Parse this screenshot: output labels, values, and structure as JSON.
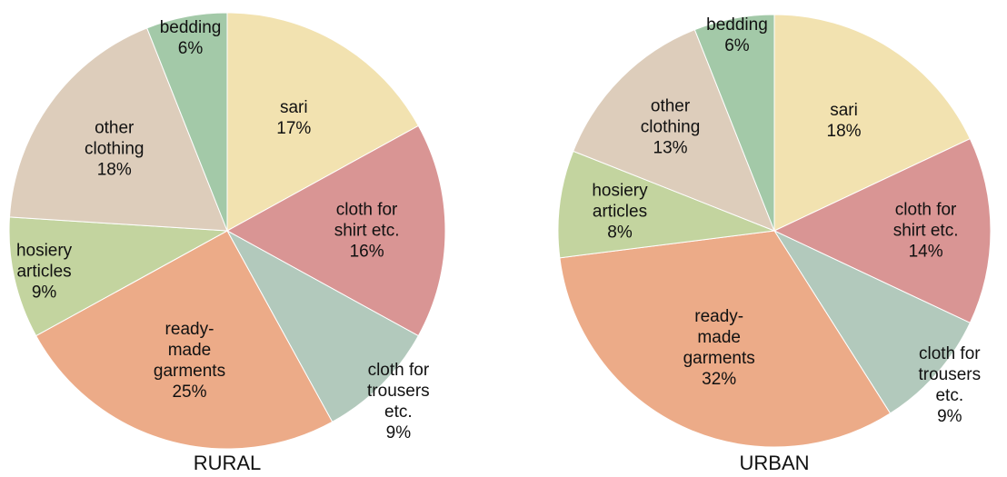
{
  "chart_data": [
    {
      "type": "pie",
      "title": "RURAL",
      "categories": [
        "sari",
        "cloth for shirt etc.",
        "cloth for trousers etc.",
        "ready-made garments",
        "hosiery articles",
        "other clothing",
        "bedding"
      ],
      "values": [
        17,
        16,
        9,
        25,
        9,
        18,
        6
      ],
      "value_labels": [
        "17%",
        "16%",
        "9%",
        "25%",
        "9%",
        "18%",
        "6%"
      ],
      "colors": [
        "#f2e2b0",
        "#d99594",
        "#b2c9bc",
        "#ecab88",
        "#c3d49f",
        "#ddcdbb",
        "#a3c9a8"
      ]
    },
    {
      "type": "pie",
      "title": "URBAN",
      "categories": [
        "sari",
        "cloth for shirt etc.",
        "cloth for trousers etc.",
        "ready-made garments",
        "hosiery articles",
        "other clothing",
        "bedding"
      ],
      "values": [
        18,
        14,
        9,
        32,
        8,
        13,
        6
      ],
      "value_labels": [
        "18%",
        "14%",
        "9%",
        "32%",
        "8%",
        "13%",
        "6%"
      ],
      "colors": [
        "#f2e2b0",
        "#d99594",
        "#b2c9bc",
        "#ecab88",
        "#c3d49f",
        "#ddcdbb",
        "#a3c9a8"
      ]
    }
  ]
}
